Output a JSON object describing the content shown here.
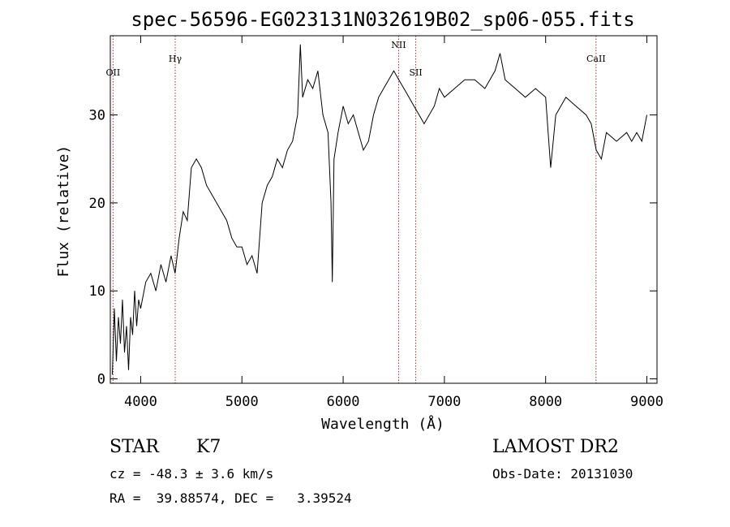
{
  "chart_data": {
    "type": "line",
    "title": "spec-56596-EG023131N032619B02_sp06-055.fits",
    "xlabel": "Wavelength (Å)",
    "ylabel": "Flux (relative)",
    "xlim": [
      3700,
      9100
    ],
    "ylim": [
      -0.5,
      39
    ],
    "xticks": [
      4000,
      5000,
      6000,
      7000,
      8000,
      9000
    ],
    "yticks": [
      0,
      10,
      20,
      30
    ],
    "lines": [
      {
        "name": "OII",
        "x": 3727
      },
      {
        "name": "Hγ",
        "x": 4341
      },
      {
        "name": "NII",
        "x": 6548
      },
      {
        "name": "SII",
        "x": 6717
      },
      {
        "name": "CaII",
        "x": 8498
      }
    ],
    "series": [
      {
        "x": [
          3720,
          3740,
          3760,
          3780,
          3800,
          3820,
          3840,
          3860,
          3880,
          3900,
          3920,
          3940,
          3960,
          3980,
          4000,
          4050,
          4100,
          4150,
          4200,
          4250,
          4300,
          4340,
          4380,
          4420,
          4460,
          4500,
          4550,
          4600,
          4650,
          4700,
          4750,
          4800,
          4850,
          4900,
          4950,
          5000,
          5050,
          5100,
          5150,
          5200,
          5250,
          5300,
          5350,
          5400,
          5450,
          5500,
          5550,
          5577,
          5600,
          5650,
          5700,
          5750,
          5800,
          5850,
          5880,
          5893,
          5910,
          5950,
          6000,
          6050,
          6100,
          6150,
          6200,
          6250,
          6300,
          6350,
          6400,
          6450,
          6500,
          6550,
          6600,
          6650,
          6700,
          6750,
          6800,
          6850,
          6900,
          6950,
          7000,
          7100,
          7200,
          7300,
          7400,
          7500,
          7550,
          7600,
          7700,
          7800,
          7900,
          8000,
          8050,
          8100,
          8150,
          8200,
          8300,
          8400,
          8450,
          8500,
          8550,
          8600,
          8700,
          8800,
          8850,
          8900,
          8950,
          9000
        ],
        "values": [
          0.5,
          8,
          2,
          7,
          4,
          9,
          3,
          6,
          1,
          7,
          5,
          10,
          6,
          9,
          8,
          11,
          12,
          10,
          13,
          11,
          14,
          12,
          16,
          19,
          18,
          24,
          25,
          24,
          22,
          21,
          20,
          19,
          18,
          16,
          15,
          15,
          13,
          14,
          12,
          20,
          22,
          23,
          25,
          24,
          26,
          27,
          30,
          38,
          32,
          34,
          33,
          35,
          30,
          28,
          20,
          11,
          25,
          28,
          31,
          29,
          30,
          28,
          26,
          27,
          30,
          32,
          33,
          34,
          35,
          34,
          33,
          32,
          31,
          30,
          29,
          30,
          31,
          33,
          32,
          33,
          34,
          34,
          33,
          35,
          37,
          34,
          33,
          32,
          33,
          32,
          24,
          30,
          31,
          32,
          31,
          30,
          29,
          26,
          25,
          28,
          27,
          28,
          27,
          28,
          27,
          30
        ]
      }
    ]
  },
  "info": {
    "class_label": "STAR",
    "subclass": "K7",
    "survey": "LAMOST DR2",
    "cz": "cz = -48.3 ± 3.6 km/s",
    "obs_date": "Obs-Date: 20131030",
    "radec": "RA =  39.88574, DEC =   3.39524"
  }
}
